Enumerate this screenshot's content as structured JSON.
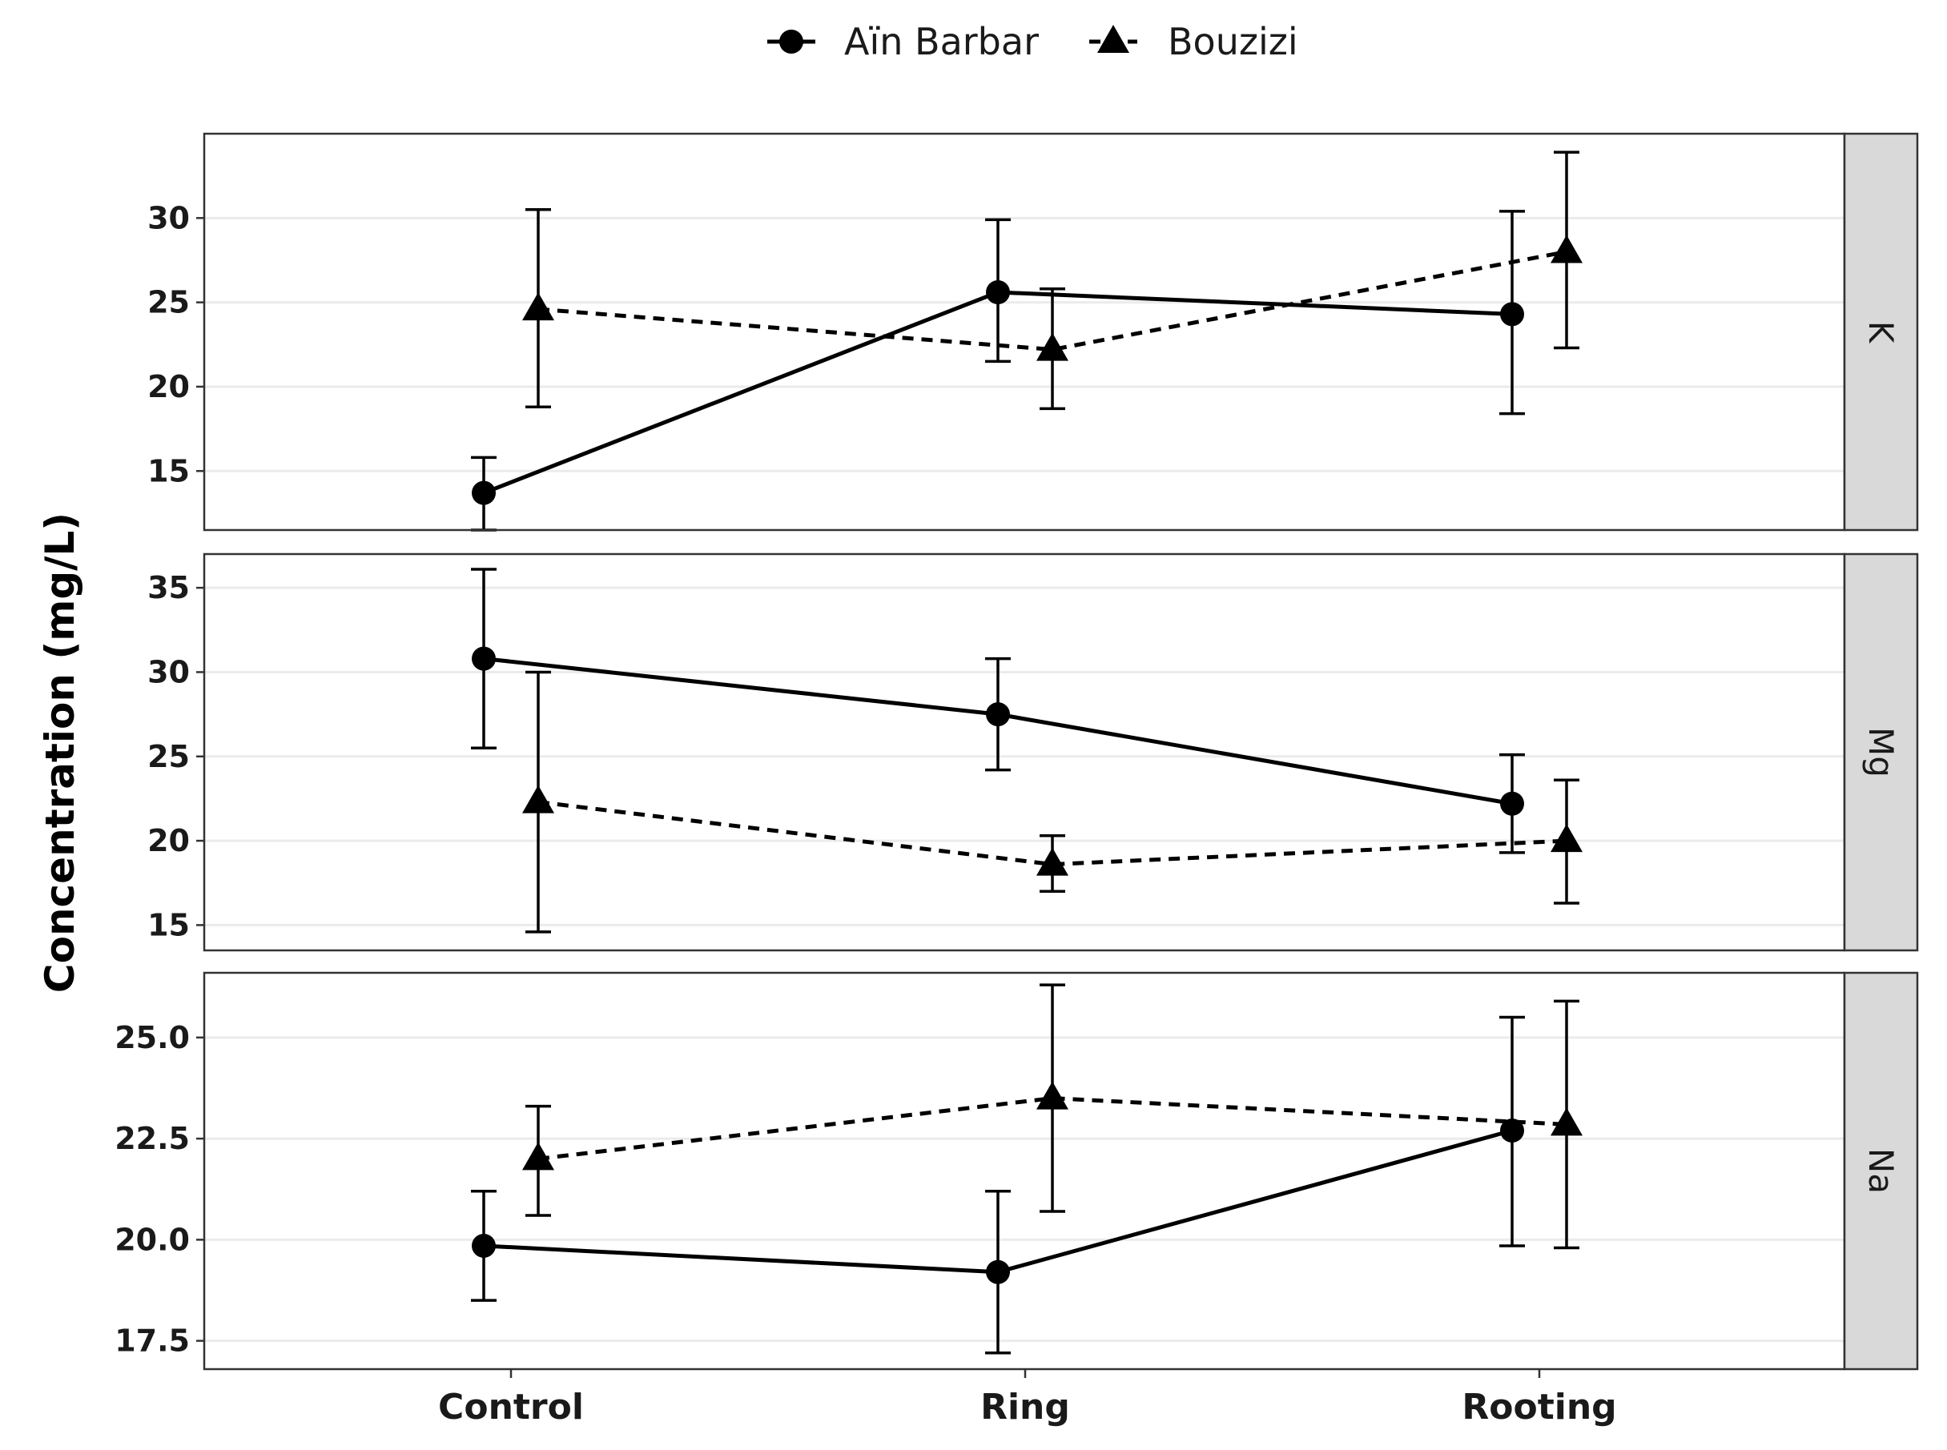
{
  "chart_data": {
    "type": "line",
    "ylabel": "Concentration (mg/L)",
    "xlabel": "",
    "categories": [
      "Control",
      "Ring",
      "Rooting"
    ],
    "legend": {
      "position": "top",
      "entries": [
        {
          "name": "Aïn Barbar",
          "marker": "circle",
          "line": "solid"
        },
        {
          "name": "Bouzizi",
          "marker": "triangle",
          "line": "dashed"
        }
      ]
    },
    "panels": [
      {
        "label": "K",
        "ylim": [
          11.5,
          35
        ],
        "yticks": [
          15,
          20,
          25,
          30
        ],
        "tick_labels": [
          "15",
          "20",
          "25",
          "30"
        ],
        "series": [
          {
            "name": "Aïn Barbar",
            "values": [
              13.7,
              25.6,
              24.3
            ],
            "lower": [
              11.5,
              21.5,
              18.4
            ],
            "upper": [
              15.8,
              29.9,
              30.4
            ]
          },
          {
            "name": "Bouzizi",
            "values": [
              24.6,
              22.2,
              28.0
            ],
            "lower": [
              18.8,
              18.7,
              22.3
            ],
            "upper": [
              30.5,
              25.8,
              33.9
            ]
          }
        ]
      },
      {
        "label": "Mg",
        "ylim": [
          13.5,
          37.0
        ],
        "yticks": [
          15,
          20,
          25,
          30,
          35
        ],
        "tick_labels": [
          "15",
          "20",
          "25",
          "30",
          "35"
        ],
        "series": [
          {
            "name": "Aïn Barbar",
            "values": [
              30.8,
              27.5,
              22.2
            ],
            "lower": [
              25.5,
              24.2,
              19.3
            ],
            "upper": [
              36.1,
              30.8,
              25.1
            ]
          },
          {
            "name": "Bouzizi",
            "values": [
              22.3,
              18.6,
              20.0
            ],
            "lower": [
              14.6,
              17.0,
              16.3
            ],
            "upper": [
              30.0,
              20.3,
              23.6
            ]
          }
        ]
      },
      {
        "label": "Na",
        "ylim": [
          16.8,
          26.6
        ],
        "yticks": [
          17.5,
          20.0,
          22.5,
          25.0
        ],
        "tick_labels": [
          "17.5",
          "20.0",
          "22.5",
          "25.0"
        ],
        "series": [
          {
            "name": "Aïn Barbar",
            "values": [
              19.85,
              19.2,
              22.7
            ],
            "lower": [
              18.5,
              17.2,
              19.85
            ],
            "upper": [
              21.2,
              21.2,
              25.5
            ]
          },
          {
            "name": "Bouzizi",
            "values": [
              22.0,
              23.5,
              22.85
            ],
            "lower": [
              20.6,
              20.7,
              19.8
            ],
            "upper": [
              23.3,
              26.3,
              25.9
            ]
          }
        ]
      }
    ]
  }
}
